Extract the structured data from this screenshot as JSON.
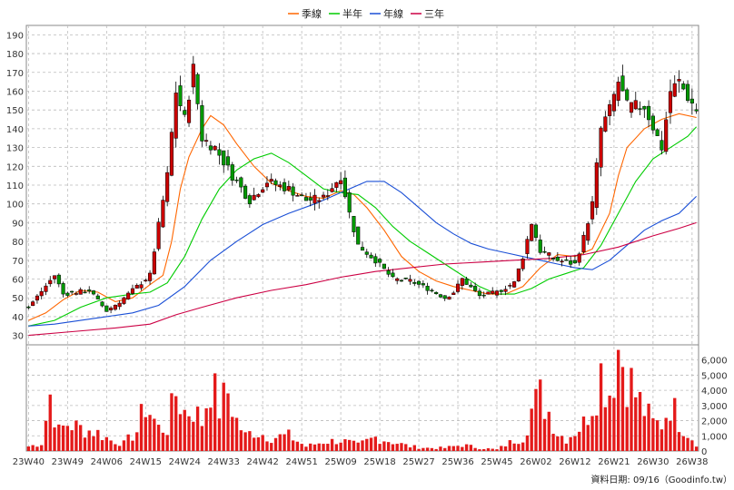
{
  "chart_data": {
    "type": "candlestick",
    "legend": [
      {
        "label": "季線",
        "color": "#ff6600"
      },
      {
        "label": "半年",
        "color": "#00cc00"
      },
      {
        "label": "年線",
        "color": "#1a4fd6"
      },
      {
        "label": "三年",
        "color": "#cc0044"
      }
    ],
    "price_axis": {
      "ylim": [
        25,
        195
      ],
      "ticks": [
        30,
        40,
        50,
        60,
        70,
        80,
        90,
        100,
        110,
        120,
        130,
        140,
        150,
        160,
        170,
        180,
        190
      ]
    },
    "volume_axis": {
      "ylim": [
        0,
        7000
      ],
      "ticks": [
        "0",
        "1,000",
        "2,000",
        "3,000",
        "4,000",
        "5,000",
        "6,000"
      ],
      "tick_values": [
        0,
        1000,
        2000,
        3000,
        4000,
        5000,
        6000
      ]
    },
    "x_labels": [
      "23W40",
      "23W49",
      "24W06",
      "24W15",
      "24W24",
      "24W33",
      "24W42",
      "24W51",
      "25W09",
      "25W18",
      "25W27",
      "25W36",
      "25W45",
      "26W02",
      "26W12",
      "26W21",
      "26W30",
      "26W38"
    ],
    "x_label_index": [
      0,
      9,
      18,
      27,
      36,
      45,
      54,
      63,
      72,
      81,
      90,
      99,
      108,
      117,
      126,
      135,
      144,
      153
    ],
    "grid": true,
    "source": "資料日期: 09/16（Goodinfo.tw）",
    "weeks": 155,
    "price_path": [
      [
        0,
        45
      ],
      [
        6,
        62
      ],
      [
        8,
        52
      ],
      [
        14,
        54
      ],
      [
        18,
        43
      ],
      [
        21,
        48
      ],
      [
        25,
        56
      ],
      [
        28,
        62
      ],
      [
        32,
        115
      ],
      [
        34,
        160
      ],
      [
        36,
        145
      ],
      [
        38,
        172
      ],
      [
        40,
        135
      ],
      [
        43,
        130
      ],
      [
        47,
        115
      ],
      [
        51,
        102
      ],
      [
        55,
        112
      ],
      [
        60,
        108
      ],
      [
        64,
        102
      ],
      [
        68,
        103
      ],
      [
        72,
        115
      ],
      [
        74,
        95
      ],
      [
        76,
        78
      ],
      [
        80,
        70
      ],
      [
        84,
        60
      ],
      [
        88,
        59
      ],
      [
        92,
        55
      ],
      [
        96,
        50
      ],
      [
        98,
        53
      ],
      [
        100,
        60
      ],
      [
        104,
        51
      ],
      [
        108,
        53
      ],
      [
        112,
        58
      ],
      [
        114,
        72
      ],
      [
        116,
        90
      ],
      [
        118,
        75
      ],
      [
        122,
        70
      ],
      [
        126,
        68
      ],
      [
        128,
        82
      ],
      [
        130,
        100
      ],
      [
        132,
        140
      ],
      [
        134,
        150
      ],
      [
        136,
        165
      ],
      [
        138,
        152
      ],
      [
        142,
        152
      ],
      [
        146,
        130
      ],
      [
        148,
        160
      ],
      [
        150,
        165
      ],
      [
        152,
        157
      ],
      [
        154,
        150
      ]
    ],
    "volume_path": [
      [
        0,
        300
      ],
      [
        3,
        500
      ],
      [
        5,
        3700
      ],
      [
        7,
        1300
      ],
      [
        9,
        1800
      ],
      [
        12,
        1500
      ],
      [
        16,
        1200
      ],
      [
        19,
        700
      ],
      [
        22,
        500
      ],
      [
        25,
        1300
      ],
      [
        27,
        3100
      ],
      [
        30,
        1500
      ],
      [
        32,
        1500
      ],
      [
        34,
        3800
      ],
      [
        36,
        2600
      ],
      [
        38,
        2800
      ],
      [
        40,
        1900
      ],
      [
        42,
        4600
      ],
      [
        44,
        2800
      ],
      [
        46,
        3900
      ],
      [
        48,
        2000
      ],
      [
        50,
        1000
      ],
      [
        52,
        1300
      ],
      [
        56,
        900
      ],
      [
        60,
        1000
      ],
      [
        64,
        300
      ],
      [
        68,
        600
      ],
      [
        72,
        700
      ],
      [
        76,
        400
      ],
      [
        80,
        900
      ],
      [
        84,
        600
      ],
      [
        88,
        300
      ],
      [
        92,
        200
      ],
      [
        96,
        200
      ],
      [
        100,
        400
      ],
      [
        104,
        200
      ],
      [
        108,
        100
      ],
      [
        112,
        700
      ],
      [
        114,
        900
      ],
      [
        116,
        2700
      ],
      [
        118,
        3600
      ],
      [
        120,
        2600
      ],
      [
        122,
        1200
      ],
      [
        124,
        800
      ],
      [
        126,
        1300
      ],
      [
        128,
        1800
      ],
      [
        130,
        3300
      ],
      [
        132,
        5200
      ],
      [
        134,
        4000
      ],
      [
        136,
        6800
      ],
      [
        138,
        5200
      ],
      [
        140,
        3700
      ],
      [
        142,
        2700
      ],
      [
        144,
        1800
      ],
      [
        146,
        1800
      ],
      [
        148,
        3200
      ],
      [
        150,
        2000
      ],
      [
        152,
        1200
      ],
      [
        154,
        500
      ]
    ],
    "ma": [
      {
        "name": "季線",
        "color": "#ff6600",
        "values": [
          [
            0,
            38
          ],
          [
            4,
            42
          ],
          [
            8,
            49
          ],
          [
            12,
            54
          ],
          [
            16,
            53
          ],
          [
            20,
            48
          ],
          [
            24,
            50
          ],
          [
            28,
            57
          ],
          [
            31,
            62
          ],
          [
            33,
            80
          ],
          [
            35,
            108
          ],
          [
            37,
            125
          ],
          [
            40,
            140
          ],
          [
            42,
            147
          ],
          [
            45,
            142
          ],
          [
            48,
            132
          ],
          [
            52,
            120
          ],
          [
            56,
            111
          ],
          [
            60,
            107
          ],
          [
            64,
            104
          ],
          [
            68,
            103
          ],
          [
            72,
            107
          ],
          [
            75,
            105
          ],
          [
            78,
            98
          ],
          [
            82,
            86
          ],
          [
            86,
            72
          ],
          [
            90,
            64
          ],
          [
            94,
            59
          ],
          [
            98,
            56
          ],
          [
            102,
            54
          ],
          [
            106,
            52
          ],
          [
            110,
            52
          ],
          [
            114,
            56
          ],
          [
            118,
            66
          ],
          [
            122,
            73
          ],
          [
            126,
            72
          ],
          [
            130,
            76
          ],
          [
            134,
            95
          ],
          [
            136,
            115
          ],
          [
            138,
            130
          ],
          [
            142,
            140
          ],
          [
            146,
            145
          ],
          [
            150,
            148
          ],
          [
            154,
            146
          ]
        ]
      },
      {
        "name": "半年",
        "color": "#00cc00",
        "values": [
          [
            0,
            35
          ],
          [
            6,
            38
          ],
          [
            12,
            45
          ],
          [
            18,
            50
          ],
          [
            24,
            52
          ],
          [
            28,
            53
          ],
          [
            32,
            58
          ],
          [
            36,
            72
          ],
          [
            40,
            92
          ],
          [
            44,
            108
          ],
          [
            48,
            118
          ],
          [
            52,
            124
          ],
          [
            56,
            127
          ],
          [
            60,
            122
          ],
          [
            64,
            115
          ],
          [
            68,
            108
          ],
          [
            72,
            106
          ],
          [
            76,
            105
          ],
          [
            80,
            98
          ],
          [
            84,
            88
          ],
          [
            88,
            80
          ],
          [
            92,
            74
          ],
          [
            96,
            68
          ],
          [
            100,
            62
          ],
          [
            104,
            56
          ],
          [
            108,
            52
          ],
          [
            112,
            52
          ],
          [
            116,
            55
          ],
          [
            120,
            60
          ],
          [
            124,
            63
          ],
          [
            128,
            66
          ],
          [
            132,
            78
          ],
          [
            136,
            95
          ],
          [
            140,
            112
          ],
          [
            144,
            124
          ],
          [
            148,
            130
          ],
          [
            152,
            136
          ],
          [
            154,
            141
          ]
        ]
      },
      {
        "name": "年線",
        "color": "#1a4fd6",
        "values": [
          [
            0,
            35
          ],
          [
            6,
            36
          ],
          [
            12,
            38
          ],
          [
            18,
            40
          ],
          [
            24,
            42
          ],
          [
            30,
            46
          ],
          [
            36,
            56
          ],
          [
            42,
            70
          ],
          [
            48,
            80
          ],
          [
            54,
            89
          ],
          [
            60,
            95
          ],
          [
            66,
            100
          ],
          [
            72,
            106
          ],
          [
            78,
            112
          ],
          [
            82,
            112
          ],
          [
            86,
            106
          ],
          [
            90,
            98
          ],
          [
            94,
            90
          ],
          [
            98,
            84
          ],
          [
            102,
            79
          ],
          [
            106,
            76
          ],
          [
            110,
            74
          ],
          [
            114,
            72
          ],
          [
            118,
            70
          ],
          [
            122,
            68
          ],
          [
            126,
            66
          ],
          [
            130,
            65
          ],
          [
            134,
            70
          ],
          [
            138,
            78
          ],
          [
            142,
            86
          ],
          [
            146,
            91
          ],
          [
            150,
            95
          ],
          [
            154,
            104
          ]
        ]
      },
      {
        "name": "三年",
        "color": "#cc0044",
        "values": [
          [
            0,
            30
          ],
          [
            10,
            32
          ],
          [
            20,
            34
          ],
          [
            28,
            36
          ],
          [
            34,
            41
          ],
          [
            40,
            45
          ],
          [
            48,
            50
          ],
          [
            56,
            54
          ],
          [
            64,
            57
          ],
          [
            72,
            61
          ],
          [
            80,
            64
          ],
          [
            88,
            66
          ],
          [
            96,
            68
          ],
          [
            104,
            69
          ],
          [
            112,
            70
          ],
          [
            120,
            71
          ],
          [
            128,
            73
          ],
          [
            136,
            77
          ],
          [
            144,
            83
          ],
          [
            150,
            87
          ],
          [
            154,
            90
          ]
        ]
      }
    ]
  }
}
